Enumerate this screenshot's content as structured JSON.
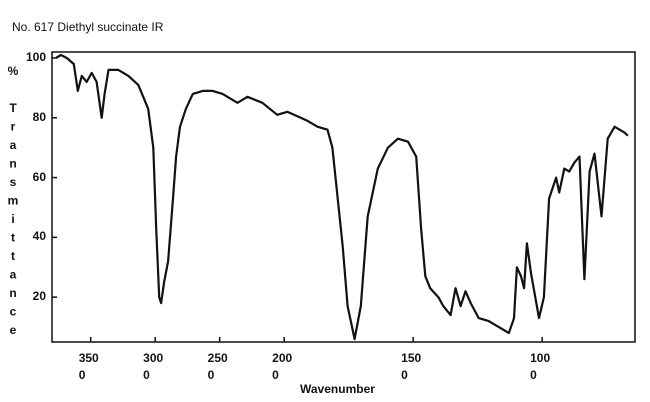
{
  "chart_data": {
    "type": "line",
    "title": "No. 617 Diethyl succinate IR",
    "x_label": "Wavenumber",
    "y_label": "% Transmittance",
    "color": "#111111",
    "xlim": [
      3800,
      640
    ],
    "ylim": [
      5,
      102
    ],
    "xticks": [
      {
        "value": 3500,
        "label": "3500"
      },
      {
        "value": 3000,
        "label": "3000"
      },
      {
        "value": 2500,
        "label": "2500"
      },
      {
        "value": 2000,
        "label": "2000"
      },
      {
        "value": 1500,
        "label": "1500"
      },
      {
        "value": 1000,
        "label": "1000"
      }
    ],
    "yticks": [
      20,
      40,
      60,
      80,
      100
    ],
    "x": [
      3769,
      3731,
      3685,
      3631,
      3600,
      3569,
      3531,
      3492,
      3454,
      3415,
      3392,
      3362,
      3285,
      3208,
      3131,
      3054,
      3015,
      2992,
      2969,
      2954,
      2931,
      2900,
      2862,
      2838,
      2808,
      2762,
      2708,
      2631,
      2554,
      2477,
      2362,
      2285,
      2169,
      2054,
      1988,
      1910,
      1871,
      1832,
      1813,
      1773,
      1754,
      1727,
      1703,
      1676,
      1637,
      1598,
      1559,
      1520,
      1488,
      1469,
      1453,
      1434,
      1402,
      1383,
      1355,
      1336,
      1316,
      1297,
      1277,
      1246,
      1207,
      1168,
      1129,
      1109,
      1098,
      1082,
      1070,
      1059,
      1043,
      1012,
      993,
      973,
      946,
      934,
      914,
      895,
      875,
      855,
      836,
      816,
      797,
      770,
      746,
      719,
      680,
      668
    ],
    "values": [
      100,
      101,
      100,
      98,
      89,
      94,
      92,
      95,
      92,
      80,
      88,
      96,
      96,
      94,
      91,
      83,
      70,
      43,
      20,
      18,
      25,
      32,
      53,
      67,
      77,
      83,
      88,
      89,
      89,
      88,
      85,
      87,
      85,
      81,
      82,
      79,
      77,
      76,
      70,
      37,
      17,
      6,
      17,
      47,
      63,
      70,
      73,
      72,
      67,
      43,
      27,
      23,
      20,
      17,
      14,
      23,
      17,
      22,
      18,
      13,
      12,
      10,
      8,
      13,
      30,
      27,
      23,
      38,
      28,
      13,
      20,
      53,
      60,
      55,
      63,
      62,
      65,
      67,
      26,
      62,
      68,
      47,
      73,
      77,
      75,
      74
    ]
  }
}
